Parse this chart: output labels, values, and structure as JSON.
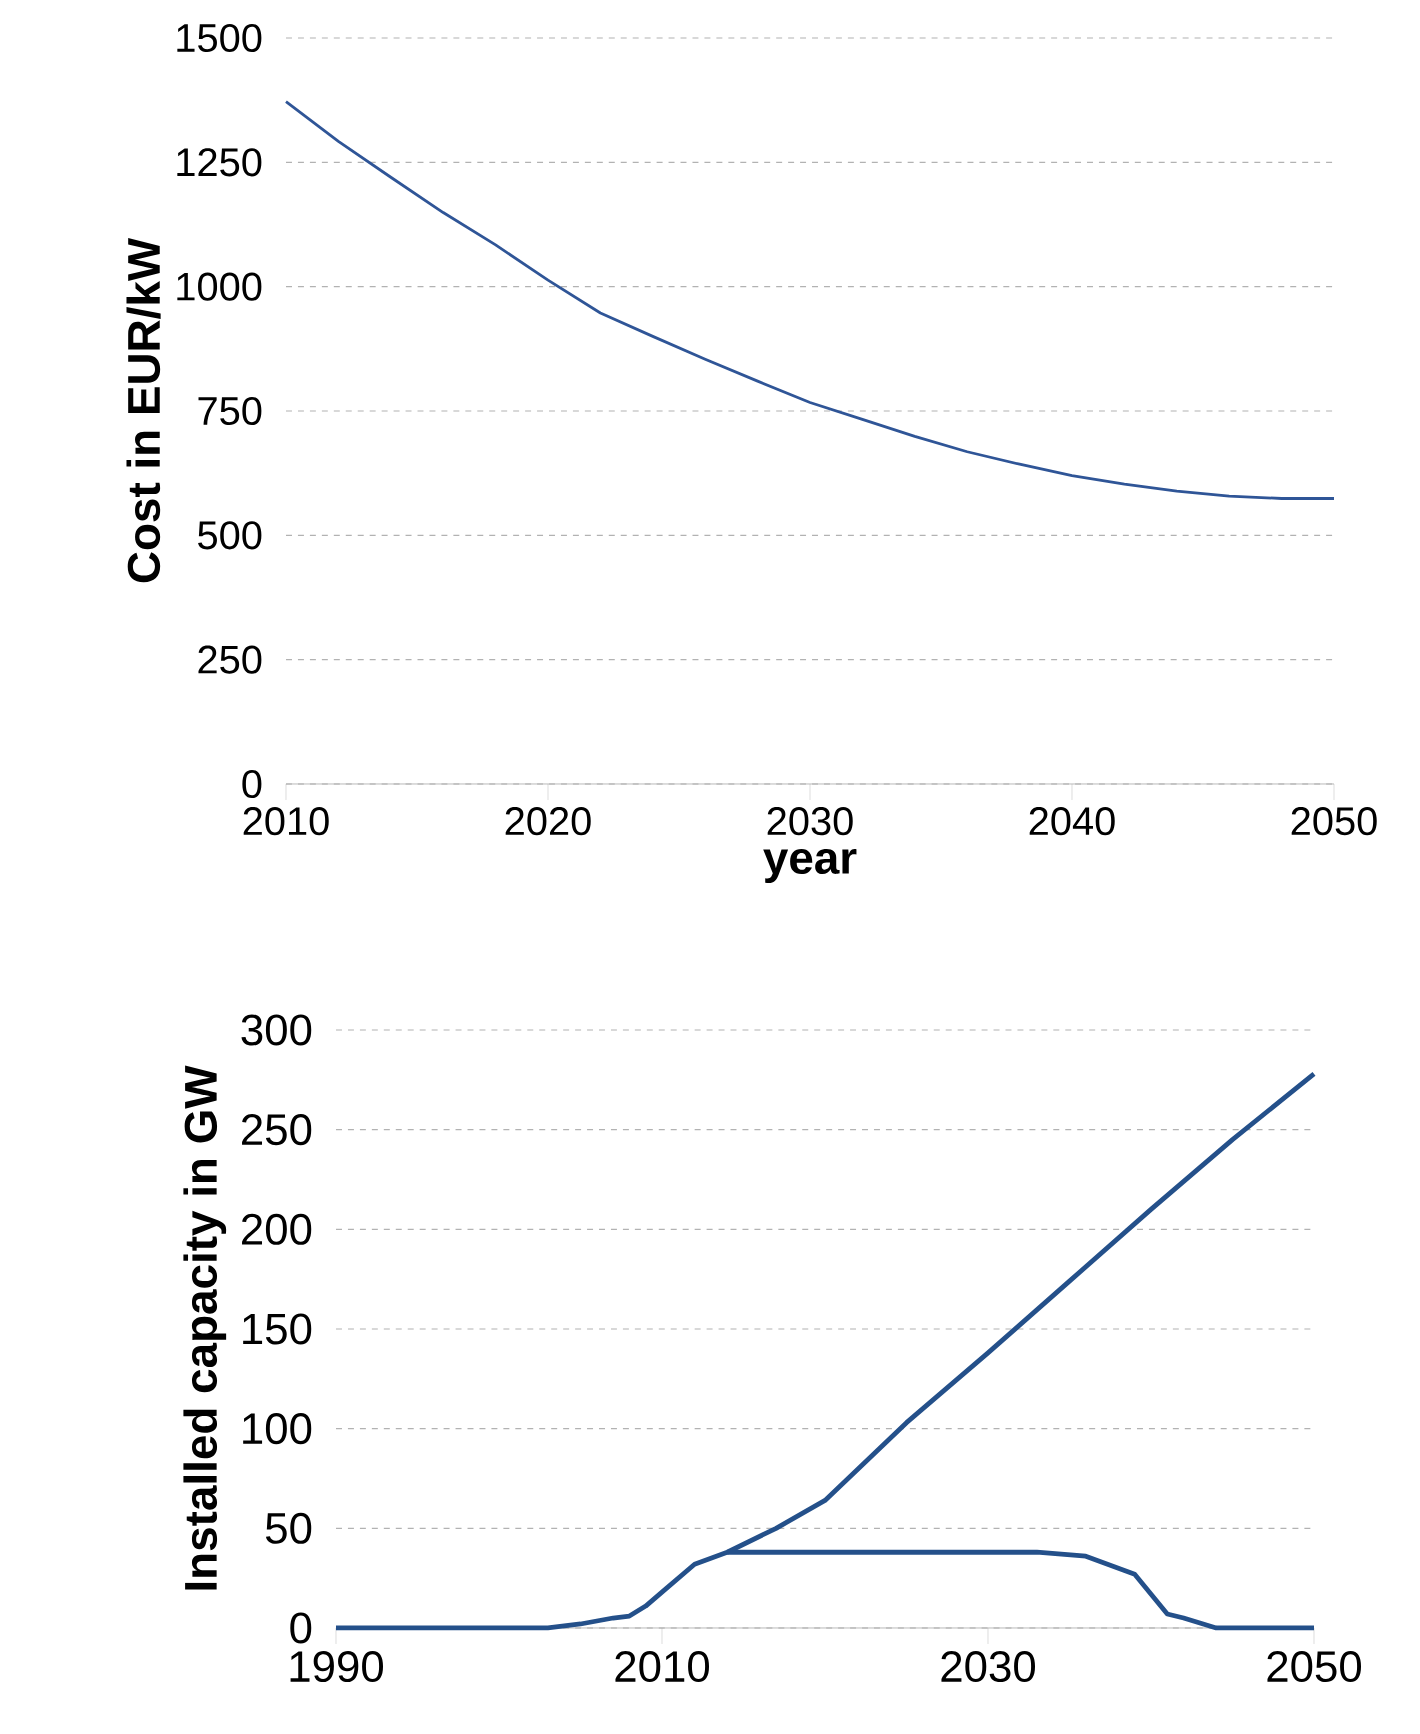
{
  "chart_data": [
    {
      "type": "line",
      "xlabel": "year",
      "ylabel": "Cost in EUR/kW",
      "x": [
        2010,
        2012,
        2014,
        2016,
        2018,
        2020,
        2022,
        2024,
        2026,
        2028,
        2030,
        2032,
        2034,
        2036,
        2038,
        2040,
        2042,
        2044,
        2046,
        2048,
        2050
      ],
      "series": [
        {
          "color": "#2f5597",
          "values": [
            1372,
            1292,
            1220,
            1149,
            1084,
            1013,
            947,
            900,
            854,
            810,
            767,
            733,
            699,
            668,
            643,
            620,
            603,
            589,
            579,
            574,
            574
          ]
        }
      ],
      "xlim": [
        2010,
        2050
      ],
      "ylim": [
        0,
        1500
      ],
      "xticks": [
        2010,
        2020,
        2030,
        2040,
        2050
      ],
      "yticks": [
        0,
        250,
        500,
        750,
        1000,
        1250,
        1500
      ],
      "grid": "y",
      "marker": "none",
      "line_style": "solid"
    },
    {
      "type": "line",
      "ylabel": "Installed capacity in GW",
      "series": [
        {
          "color": "#24508a",
          "x": [
            1990,
            2003,
            2005,
            2007,
            2008,
            2009,
            2010,
            2012,
            2014,
            2017,
            2020,
            2025,
            2030,
            2035,
            2040,
            2045,
            2050
          ],
          "values": [
            0,
            0,
            2,
            5,
            6,
            11,
            18,
            32,
            38,
            50,
            64,
            103,
            138,
            174,
            210,
            245,
            278
          ]
        },
        {
          "color": "#24508a",
          "x": [
            2014,
            2033,
            2036,
            2037,
            2039,
            2041,
            2042,
            2044,
            2050
          ],
          "values": [
            38,
            38,
            36,
            33,
            27,
            7,
            5,
            0,
            0
          ]
        }
      ],
      "xlim": [
        1990,
        2050
      ],
      "ylim": [
        0,
        300
      ],
      "xticks": [
        1990,
        2010,
        2030,
        2050
      ],
      "yticks": [
        0,
        50,
        100,
        150,
        200,
        250,
        300
      ],
      "grid": "y",
      "marker": "none",
      "line_style": "solid"
    }
  ]
}
